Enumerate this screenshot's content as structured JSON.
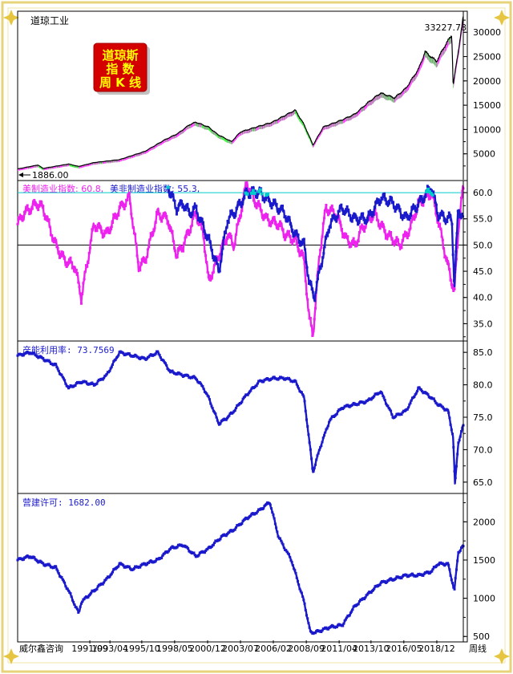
{
  "colors": {
    "frame": "#e8d98a",
    "djia_up": "#ff33ff",
    "djia_down": "#33ee33",
    "djia_line": "#000000",
    "mfg": "#ee22ee",
    "nonmfg": "#1a1acc",
    "capacity": "#1a1acc",
    "permits": "#1a1acc",
    "ref_cyan": "#00cccc",
    "ref_black": "#000000",
    "stamp_bg": "#d40000",
    "stamp_text": "#ffff00"
  },
  "stamp": {
    "line1": "道琼斯",
    "line2": "指 数",
    "line3": "周 K 线"
  },
  "panels": {
    "djia": {
      "title": "道琼工业",
      "max_label": "33227.78",
      "min_label": "1886.00"
    },
    "ism": {
      "legend_mfg": "美制造业指数: 60.8,",
      "legend_nonmfg": "美非制造业指数: 55.3,"
    },
    "capacity": {
      "legend": "产能利用率: 73.7569"
    },
    "permits": {
      "legend": "营建许可: 1682.00"
    }
  },
  "footer": {
    "source": "威尔鑫咨询",
    "freq": "周线"
  },
  "chart_data": [
    {
      "type": "line",
      "title": "道琼工业",
      "ylim": [
        0,
        34000
      ],
      "yticks": [
        5000,
        10000,
        15000,
        20000,
        25000,
        30000
      ],
      "series": [
        {
          "name": "道琼工业",
          "x": [
            1986.0,
            1987.6,
            1988.0,
            1990.0,
            1990.8,
            1992.0,
            1994.0,
            1996.0,
            1997.5,
            1998.6,
            1999.5,
            2000.0,
            2001.0,
            2001.7,
            2002.8,
            2003.5,
            2004.5,
            2006.0,
            2007.8,
            2008.5,
            2009.2,
            2010.0,
            2011.5,
            2012.5,
            2013.5,
            2014.5,
            2015.6,
            2016.5,
            2017.5,
            2018.0,
            2018.9,
            2019.5,
            2020.1,
            2020.2,
            2020.6,
            2021.0
          ],
          "values": [
            1886,
            2700,
            2000,
            2900,
            2400,
            3200,
            3800,
            5500,
            7800,
            9200,
            11000,
            11500,
            10500,
            9000,
            7500,
            9500,
            10300,
            11500,
            14000,
            11000,
            6800,
            10500,
            12000,
            13200,
            15500,
            17500,
            16500,
            18500,
            22500,
            26000,
            24000,
            27000,
            29500,
            19000,
            26000,
            33227.78
          ]
        }
      ],
      "max_label": "33227.78",
      "min_label": "1886.00"
    },
    {
      "type": "line",
      "ylim": [
        32,
        62
      ],
      "yticks": [
        35.0,
        40.0,
        45.0,
        50.0,
        55.0,
        60.0
      ],
      "reference_lines": [
        60,
        50
      ],
      "series": [
        {
          "name": "美制造业指数",
          "x": [
            1986.0,
            1986.5,
            1987.5,
            1988.0,
            1989.0,
            1989.7,
            1990.5,
            1991.0,
            1992.0,
            1993.0,
            1994.0,
            1994.8,
            1995.5,
            1996.0,
            1997.0,
            1997.8,
            1998.5,
            1999.0,
            2000.0,
            2000.6,
            2001.0,
            2001.8,
            2002.5,
            2003.0,
            2004.0,
            2004.5,
            2005.5,
            2006.5,
            2007.0,
            2007.8,
            2008.5,
            2008.9,
            2009.2,
            2009.7,
            2010.2,
            2011.0,
            2011.8,
            2012.5,
            2013.0,
            2014.0,
            2015.0,
            2016.0,
            2016.8,
            2017.5,
            2018.5,
            2019.0,
            2019.7,
            2020.3,
            2020.7,
            2021.0
          ],
          "values": [
            54,
            56,
            58,
            57,
            50,
            47,
            46,
            40,
            54,
            52,
            57,
            59,
            46,
            47,
            56,
            55,
            48,
            50,
            56,
            52,
            43,
            48,
            52,
            50,
            62,
            59,
            55,
            54,
            52,
            51,
            47,
            36,
            33,
            48,
            57,
            56,
            51,
            50,
            53,
            56,
            52,
            50,
            53,
            58,
            60,
            55,
            47,
            41,
            56,
            60.8
          ]
        },
        {
          "name": "美非制造业指数",
          "x": [
            1997.8,
            1998.5,
            1999.0,
            1999.5,
            2000.0,
            2000.5,
            2001.0,
            2001.8,
            2002.5,
            2003.0,
            2004.0,
            2005.0,
            2006.0,
            2007.0,
            2007.8,
            2008.5,
            2008.9,
            2009.3,
            2009.8,
            2010.5,
            2011.5,
            2012.5,
            2013.5,
            2014.5,
            2015.5,
            2016.5,
            2017.5,
            2018.5,
            2019.0,
            2019.7,
            2020.1,
            2020.3,
            2020.6,
            2021.0
          ],
          "values": [
            61,
            57,
            58,
            56,
            57,
            54,
            51,
            45,
            55,
            56,
            60,
            60,
            58,
            56,
            52,
            50,
            43,
            40,
            46,
            54,
            57,
            55,
            55,
            59,
            58,
            55,
            58,
            61,
            56,
            55,
            55,
            42,
            57,
            55.3
          ]
        }
      ],
      "legend_values": {
        "美制造业指数": 60.8,
        "美非制造业指数": 55.3
      }
    },
    {
      "type": "line",
      "ylim": [
        63.5,
        86.5
      ],
      "yticks": [
        65.0,
        70.0,
        75.0,
        80.0,
        85.0
      ],
      "series": [
        {
          "name": "产能利用率",
          "x": [
            1986.0,
            1987.0,
            1988.0,
            1989.0,
            1990.0,
            1991.0,
            1992.0,
            1993.0,
            1994.0,
            1995.0,
            1996.0,
            1997.0,
            1998.0,
            1999.0,
            2000.0,
            2000.6,
            2001.0,
            2001.8,
            2002.5,
            2003.0,
            2004.0,
            2005.0,
            2006.0,
            2007.0,
            2007.8,
            2008.5,
            2009.2,
            2009.7,
            2010.5,
            2011.5,
            2012.5,
            2013.5,
            2014.5,
            2015.5,
            2016.0,
            2016.5,
            2017.5,
            2018.5,
            2019.0,
            2019.8,
            2020.2,
            2020.35,
            2020.6,
            2021.0
          ],
          "values": [
            84.5,
            85,
            84,
            83,
            79.5,
            80.5,
            80,
            81.5,
            85,
            84.5,
            84,
            85,
            82,
            81.5,
            81,
            79.5,
            78,
            74,
            75,
            76,
            78.5,
            80.5,
            81,
            81,
            80.5,
            78,
            66.5,
            70,
            74.5,
            76.5,
            77,
            77.5,
            79,
            75,
            75.5,
            76,
            79.5,
            78,
            77,
            76,
            72,
            64.5,
            71,
            73.7569
          ]
        }
      ],
      "legend_value": 73.7569
    },
    {
      "type": "line",
      "ylim": [
        450,
        2350
      ],
      "yticks": [
        500,
        1000,
        1500,
        2000
      ],
      "series": [
        {
          "name": "营建许可",
          "x": [
            1986.0,
            1987.0,
            1988.0,
            1989.0,
            1990.0,
            1990.8,
            1991.0,
            1992.0,
            1993.0,
            1994.0,
            1995.0,
            1996.0,
            1997.0,
            1998.0,
            1999.0,
            2000.0,
            2001.0,
            2002.0,
            2003.0,
            2004.0,
            2005.0,
            2005.8,
            2006.5,
            2007.5,
            2008.5,
            2009.0,
            2009.5,
            2010.5,
            2011.5,
            2012.5,
            2013.5,
            2014.5,
            2015.5,
            2016.5,
            2017.5,
            2018.5,
            2019.0,
            2019.8,
            2020.3,
            2020.6,
            2021.0
          ],
          "values": [
            1500,
            1550,
            1450,
            1400,
            1100,
            800,
            950,
            1100,
            1250,
            1450,
            1380,
            1450,
            1500,
            1650,
            1700,
            1550,
            1650,
            1800,
            1900,
            2050,
            2150,
            2260,
            1800,
            1500,
            950,
            550,
            560,
            620,
            650,
            900,
            1050,
            1200,
            1250,
            1300,
            1300,
            1350,
            1450,
            1450,
            1100,
            1600,
            1682
          ]
        }
      ],
      "legend_value": 1682.0
    }
  ],
  "x_axis": {
    "range": [
      1986.0,
      2021.0
    ],
    "tick_labels": [
      "1991/09",
      "1993/04",
      "1995/10",
      "1998/05",
      "2000/12",
      "2003/07",
      "2006/02",
      "2008/09",
      "2011/04",
      "2013/10",
      "2016/05",
      "2018/12"
    ],
    "tick_values": [
      1991.67,
      1993.25,
      1995.75,
      1998.33,
      2000.92,
      2003.5,
      2006.08,
      2008.67,
      2011.25,
      2013.75,
      2016.33,
      2018.92
    ]
  }
}
